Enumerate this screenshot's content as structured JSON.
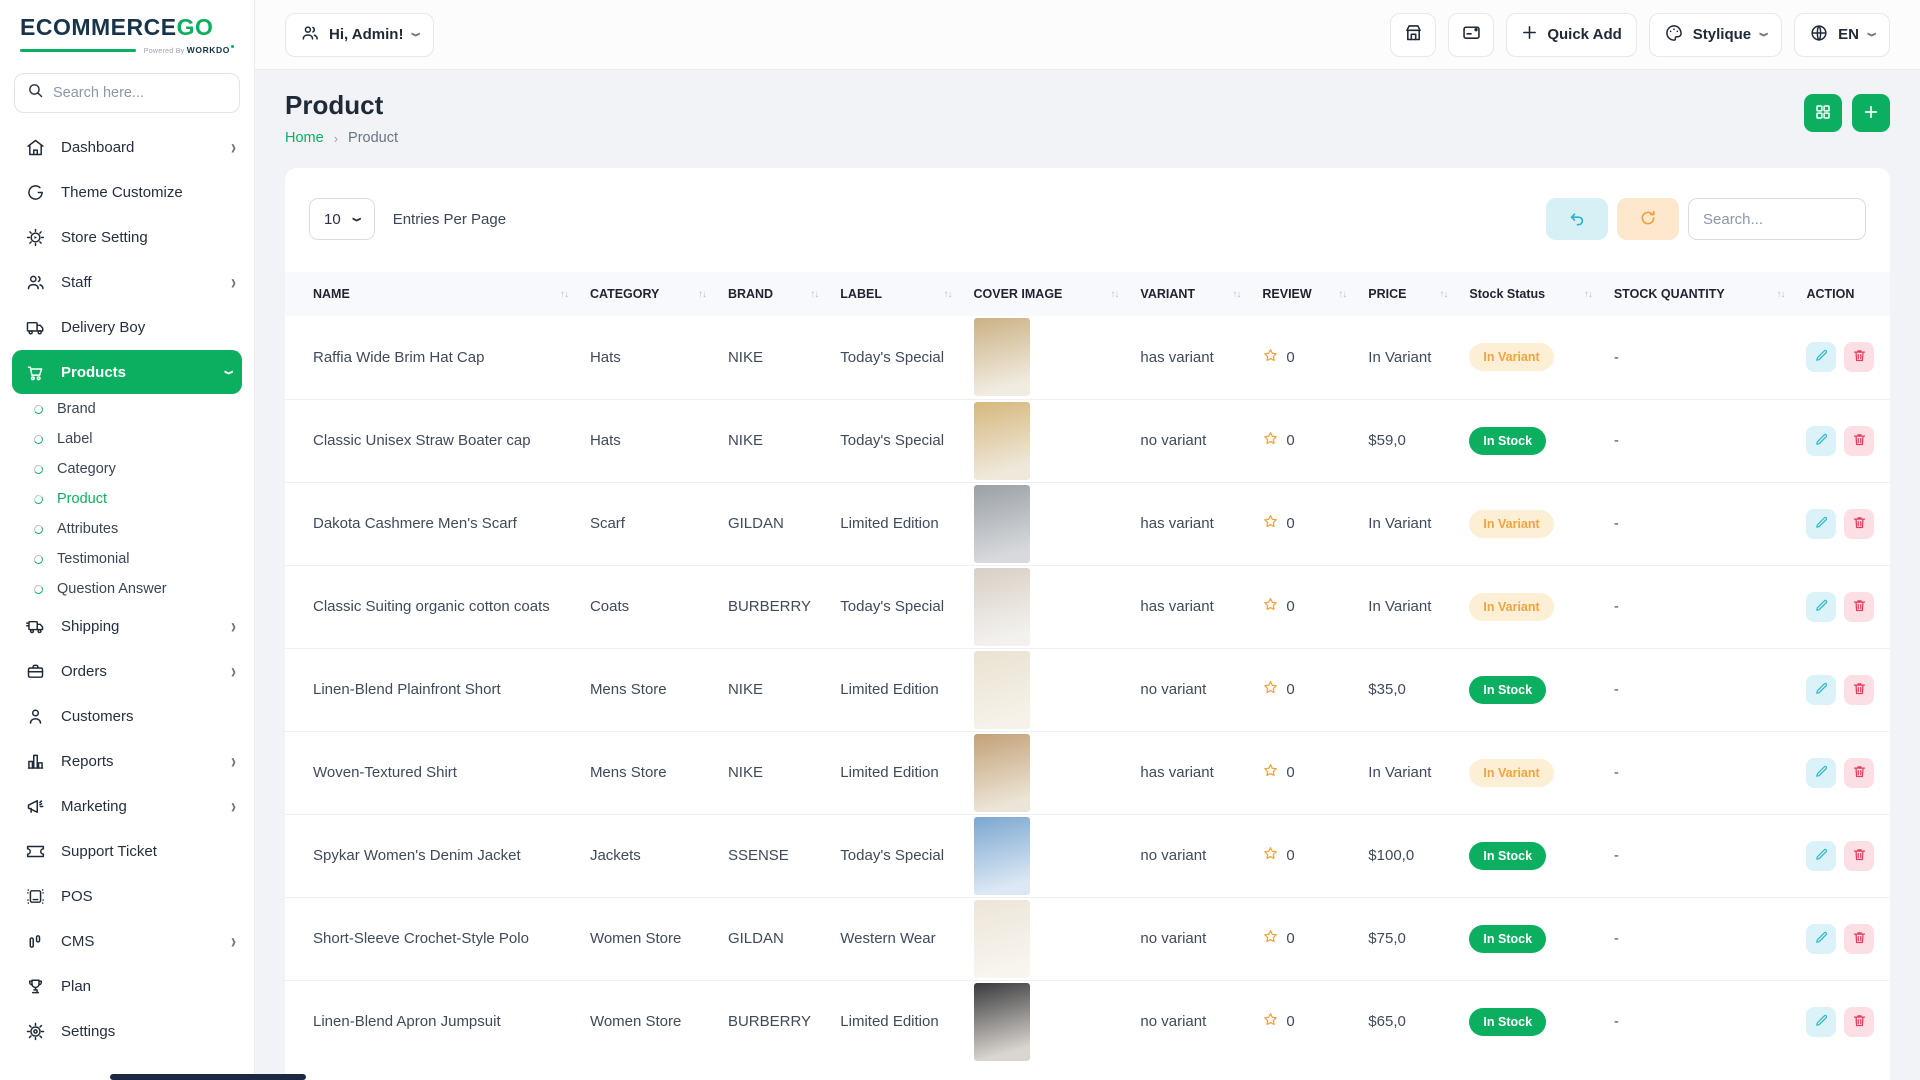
{
  "brand": {
    "name_primary": "ECOMMERCE",
    "name_accent": "GO",
    "powered_by": "Powered By",
    "powered_brand": "WORKDO"
  },
  "sidebar": {
    "search_placeholder": "Search here...",
    "menu": [
      {
        "label": "Dashboard",
        "icon": "home",
        "chevron": "right"
      },
      {
        "label": "Theme Customize",
        "icon": "theme"
      },
      {
        "label": "Store Setting",
        "icon": "store-setting"
      },
      {
        "label": "Staff",
        "icon": "staff",
        "chevron": "right"
      },
      {
        "label": "Delivery Boy",
        "icon": "delivery-truck"
      },
      {
        "label": "Products",
        "icon": "cart",
        "chevron": "down",
        "active": true,
        "children": [
          "Brand",
          "Label",
          "Category",
          "Product",
          "Attributes",
          "Testimonial",
          "Question Answer"
        ],
        "active_child": "Product"
      },
      {
        "label": "Shipping",
        "icon": "shipping-truck",
        "chevron": "right"
      },
      {
        "label": "Orders",
        "icon": "briefcase",
        "chevron": "right"
      },
      {
        "label": "Customers",
        "icon": "person"
      },
      {
        "label": "Reports",
        "icon": "bar-chart",
        "chevron": "right"
      },
      {
        "label": "Marketing",
        "icon": "megaphone",
        "chevron": "right"
      },
      {
        "label": "Support Ticket",
        "icon": "ticket"
      },
      {
        "label": "POS",
        "icon": "pos"
      },
      {
        "label": "CMS",
        "icon": "cms",
        "chevron": "right"
      },
      {
        "label": "Plan",
        "icon": "trophy"
      },
      {
        "label": "Settings",
        "icon": "gear"
      }
    ]
  },
  "header": {
    "user_label": "Hi, Admin!",
    "quick_add_label": "Quick Add",
    "theme_label": "Stylique",
    "language_label": "EN"
  },
  "page": {
    "title": "Product",
    "breadcrumb": {
      "home": "Home",
      "separator": "›",
      "current": "Product"
    }
  },
  "toolbar": {
    "entries_value": "10",
    "entries_label": "Entries Per Page",
    "search_placeholder": "Search..."
  },
  "table": {
    "columns": [
      "NAME",
      "CATEGORY",
      "BRAND",
      "LABEL",
      "COVER IMAGE",
      "VARIANT",
      "REVIEW",
      "PRICE",
      "Stock Status",
      "STOCK QUANTITY",
      "ACTION"
    ],
    "rows": [
      {
        "name": "Raffia Wide Brim Hat Cap",
        "category": "Hats",
        "brand": "NIKE",
        "label": "Today's Special",
        "variant": "has variant",
        "review": "0",
        "price": "In Variant",
        "stock_status": "In Variant",
        "stock_quantity": "-",
        "cover": [
          "#cbb183",
          "#f1ece2"
        ]
      },
      {
        "name": "Classic Unisex Straw Boater cap",
        "category": "Hats",
        "brand": "NIKE",
        "label": "Today's Special",
        "variant": "no variant",
        "review": "0",
        "price": "$59,0",
        "stock_status": "In Stock",
        "stock_quantity": "-",
        "cover": [
          "#d6b77c",
          "#efe9dc"
        ]
      },
      {
        "name": "Dakota Cashmere Men's Scarf",
        "category": "Scarf",
        "brand": "GILDAN",
        "label": "Limited Edition",
        "variant": "has variant",
        "review": "0",
        "price": "In Variant",
        "stock_status": "In Variant",
        "stock_quantity": "-",
        "cover": [
          "#9aa0a6",
          "#d7d9dc"
        ]
      },
      {
        "name": "Classic Suiting organic cotton coats",
        "category": "Coats",
        "brand": "BURBERRY",
        "label": "Today's Special",
        "variant": "has variant",
        "review": "0",
        "price": "In Variant",
        "stock_status": "In Variant",
        "stock_quantity": "-",
        "cover": [
          "#d8cfc4",
          "#f3f1ee"
        ]
      },
      {
        "name": "Linen-Blend Plainfront Short",
        "category": "Mens Store",
        "brand": "NIKE",
        "label": "Limited Edition",
        "variant": "no variant",
        "review": "0",
        "price": "$35,0",
        "stock_status": "In Stock",
        "stock_quantity": "-",
        "cover": [
          "#e9e2d2",
          "#f6f2e9"
        ]
      },
      {
        "name": "Woven-Textured Shirt",
        "category": "Mens Store",
        "brand": "NIKE",
        "label": "Limited Edition",
        "variant": "has variant",
        "review": "0",
        "price": "In Variant",
        "stock_status": "In Variant",
        "stock_quantity": "-",
        "cover": [
          "#c3a177",
          "#ece4d6"
        ]
      },
      {
        "name": "Spykar Women's Denim Jacket",
        "category": "Jackets",
        "brand": "SSENSE",
        "label": "Today's Special",
        "variant": "no variant",
        "review": "0",
        "price": "$100,0",
        "stock_status": "In Stock",
        "stock_quantity": "-",
        "cover": [
          "#7ba7d0",
          "#dce8f4"
        ]
      },
      {
        "name": "Short-Sleeve Crochet-Style Polo",
        "category": "Women Store",
        "brand": "GILDAN",
        "label": "Western Wear",
        "variant": "no variant",
        "review": "0",
        "price": "$75,0",
        "stock_status": "In Stock",
        "stock_quantity": "-",
        "cover": [
          "#ece5d8",
          "#f8f5ef"
        ]
      },
      {
        "name": "Linen-Blend Apron Jumpsuit",
        "category": "Women Store",
        "brand": "BURBERRY",
        "label": "Limited Edition",
        "variant": "no variant",
        "review": "0",
        "price": "$65,0",
        "stock_status": "In Stock",
        "stock_quantity": "-",
        "cover": [
          "#3a3a3c",
          "#d9d5cf"
        ]
      }
    ]
  },
  "colors": {
    "primary_green": "#0caf60",
    "logo_dark": "#17344a",
    "badge_variant_bg": "#fdeed6",
    "badge_variant_text": "#f0a43e",
    "badge_stock_bg": "#0caf60",
    "badge_stock_text": "#ffffff",
    "edit_button_bg": "#dbf3f8",
    "edit_icon": "#35b9cc",
    "delete_button_bg": "#fcdfe5",
    "delete_icon": "#e23e59",
    "undo_button_bg": "#d6f0f5",
    "undo_icon": "#2db3c9",
    "refresh_button_bg": "#fde7cd",
    "refresh_icon": "#f0a23c",
    "star_color": "#f2a33c"
  }
}
